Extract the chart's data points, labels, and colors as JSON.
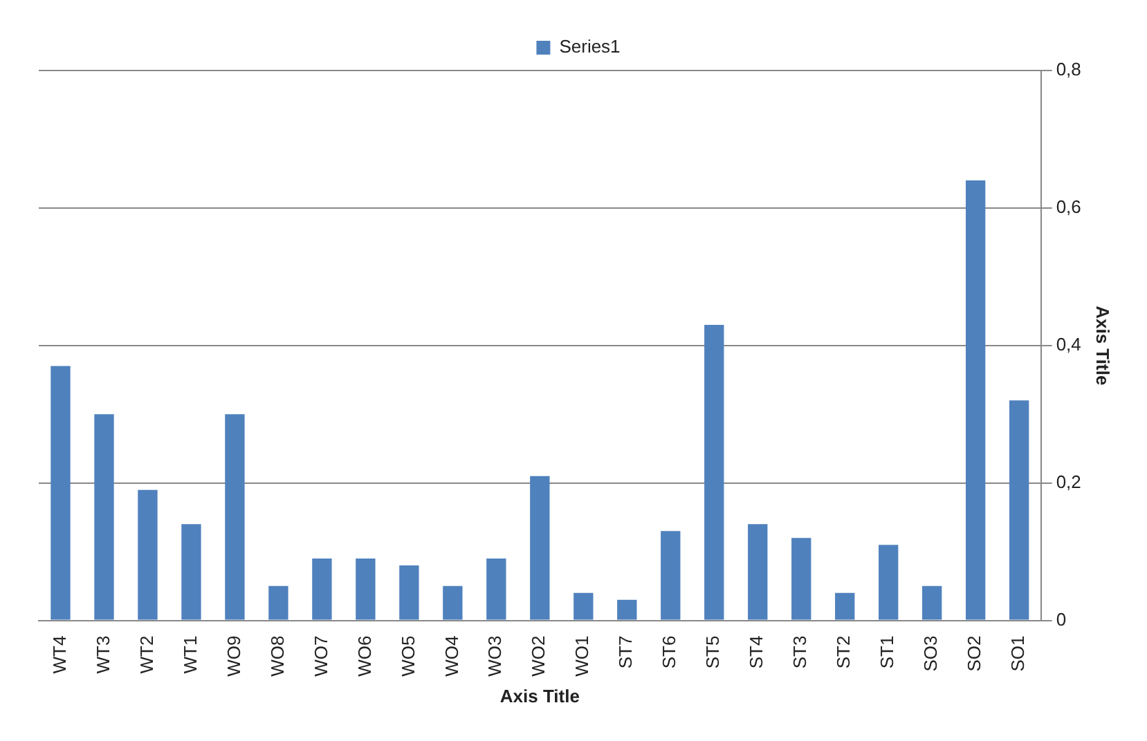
{
  "chart_data": {
    "type": "bar",
    "categories": [
      "WT4",
      "WT3",
      "WT2",
      "WT1",
      "WO9",
      "WO8",
      "WO7",
      "WO6",
      "WO5",
      "WO4",
      "WO3",
      "WO2",
      "WO1",
      "ST7",
      "ST6",
      "ST5",
      "ST4",
      "ST3",
      "ST2",
      "ST1",
      "SO3",
      "SO2",
      "SO1"
    ],
    "series": [
      {
        "name": "Series1",
        "color": "#4f81bd",
        "values": [
          0.37,
          0.3,
          0.19,
          0.14,
          0.3,
          0.05,
          0.09,
          0.09,
          0.08,
          0.05,
          0.09,
          0.21,
          0.04,
          0.03,
          0.13,
          0.43,
          0.14,
          0.12,
          0.04,
          0.11,
          0.05,
          0.64,
          0.32
        ]
      }
    ],
    "xlabel": "Axis Title",
    "ylabel": "Axis Title",
    "ylim": [
      0,
      0.8
    ],
    "yticks": [
      {
        "value": 0,
        "label": "0"
      },
      {
        "value": 0.2,
        "label": "0,2"
      },
      {
        "value": 0.4,
        "label": "0,4"
      },
      {
        "value": 0.6,
        "label": "0,6"
      },
      {
        "value": 0.8,
        "label": "0,8"
      }
    ],
    "grid": "y",
    "legend": "top"
  }
}
